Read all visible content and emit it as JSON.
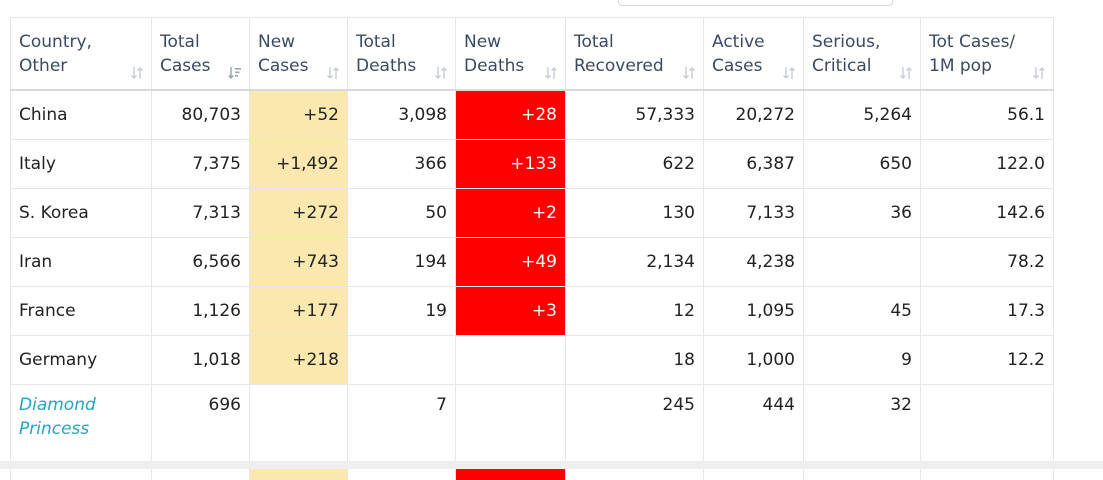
{
  "table": {
    "headers": [
      {
        "line1": "Country,",
        "line2": "Other",
        "sort_icon": "sort-arrows-icon"
      },
      {
        "line1": "Total",
        "line2": "Cases",
        "sort_icon": "sort-desc-active-icon"
      },
      {
        "line1": "New",
        "line2": "Cases",
        "sort_icon": "sort-arrows-icon"
      },
      {
        "line1": "Total",
        "line2": "Deaths",
        "sort_icon": "sort-arrows-icon"
      },
      {
        "line1": "New",
        "line2": "Deaths",
        "sort_icon": "sort-arrows-icon"
      },
      {
        "line1": "Total",
        "line2": "Recovered",
        "sort_icon": "sort-arrows-icon"
      },
      {
        "line1": "Active",
        "line2": "Cases",
        "sort_icon": "sort-arrows-icon"
      },
      {
        "line1": "Serious,",
        "line2": "Critical",
        "sort_icon": "sort-arrows-icon"
      },
      {
        "line1": "Tot Cases/",
        "line2": "1M pop",
        "sort_icon": "sort-arrows-icon"
      }
    ],
    "rows": [
      {
        "country": "China",
        "link": false,
        "total_cases": "80,703",
        "new_cases": "+52",
        "total_deaths": "3,098",
        "new_deaths": "+28",
        "total_recovered": "57,333",
        "active_cases": "20,272",
        "serious_critical": "5,264",
        "tot_cases_1m": "56.1"
      },
      {
        "country": "Italy",
        "link": false,
        "total_cases": "7,375",
        "new_cases": "+1,492",
        "total_deaths": "366",
        "new_deaths": "+133",
        "total_recovered": "622",
        "active_cases": "6,387",
        "serious_critical": "650",
        "tot_cases_1m": "122.0"
      },
      {
        "country": "S. Korea",
        "link": false,
        "total_cases": "7,313",
        "new_cases": "+272",
        "total_deaths": "50",
        "new_deaths": "+2",
        "total_recovered": "130",
        "active_cases": "7,133",
        "serious_critical": "36",
        "tot_cases_1m": "142.6"
      },
      {
        "country": "Iran",
        "link": false,
        "total_cases": "6,566",
        "new_cases": "+743",
        "total_deaths": "194",
        "new_deaths": "+49",
        "total_recovered": "2,134",
        "active_cases": "4,238",
        "serious_critical": "",
        "tot_cases_1m": "78.2"
      },
      {
        "country": "France",
        "link": false,
        "total_cases": "1,126",
        "new_cases": "+177",
        "total_deaths": "19",
        "new_deaths": "+3",
        "total_recovered": "12",
        "active_cases": "1,095",
        "serious_critical": "45",
        "tot_cases_1m": "17.3"
      },
      {
        "country": "Germany",
        "link": false,
        "total_cases": "1,018",
        "new_cases": "+218",
        "total_deaths": "",
        "new_deaths": "",
        "total_recovered": "18",
        "active_cases": "1,000",
        "serious_critical": "9",
        "tot_cases_1m": "12.2"
      },
      {
        "country_line1": "Diamond",
        "country_line2": "Princess",
        "link": true,
        "total_cases": "696",
        "new_cases": "",
        "total_deaths": "7",
        "new_deaths": "",
        "total_recovered": "245",
        "active_cases": "444",
        "serious_critical": "32",
        "tot_cases_1m": ""
      }
    ]
  },
  "colors": {
    "new_cases_bg": "#fbe8ae",
    "new_deaths_bg": "#ff0000",
    "header_text": "#3a4a63",
    "link_text": "#27a3c4"
  }
}
